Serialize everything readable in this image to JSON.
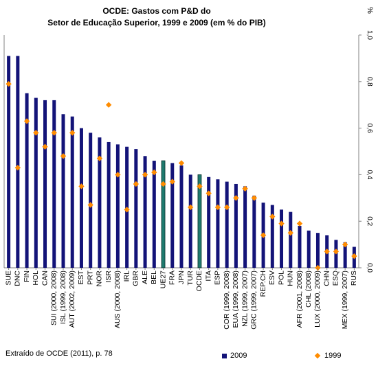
{
  "title_line1": "OCDE: Gastos com P&D do",
  "title_line2": "Setor de Educação Superior, 1999 e 2009 (em % do PIB)",
  "source": "Extraído de OCDE (2011), p. 78",
  "colors": {
    "bar_2009": "#131378",
    "bar_highlight": "#1f7a6e",
    "marker_1999": "#ff8c00",
    "axis": "#808080"
  },
  "chart_data": {
    "type": "bar",
    "title": "OCDE: Gastos com P&D do Setor de Educação Superior, 1999 e 2009 (em % do PIB)",
    "ylabel": "%",
    "ylim": [
      0,
      1.0
    ],
    "yticks": [
      "0,0",
      "0,2",
      "0,4",
      "0,6",
      "0,8",
      "1,0"
    ],
    "grid": false,
    "legend": "bottom-right",
    "highlight": [
      "UE27",
      "OCDE"
    ],
    "categories": [
      "SUE",
      "DNC",
      "FIN",
      "HOL",
      "CAN",
      "SUI (2000, 2008)",
      "ISL (1999, 2008)",
      "AUT (2002, 2009)",
      "EST",
      "PRT",
      "NOR",
      "ISR",
      "AUS (2000, 2008)",
      "IRL",
      "GBR",
      "ALE",
      "BEL",
      "UE27",
      "FRA",
      "JPN",
      "TUR",
      "OCDE",
      "ITA",
      "ESP",
      "COR (1999, 2008)",
      "EUA (1999, 2008)",
      "NZL (1999, 2007)",
      "GRC (1999, 2007)",
      "REP.CH",
      "ESV",
      "POL",
      "HUN",
      "AFR (2001, 2008)",
      "CHL (2008)",
      "LUX (2000, 2009)",
      "CHN",
      "ESQ",
      "MEX (1999, 2007)",
      "RUS"
    ],
    "series": [
      {
        "name": "2009",
        "type": "bar",
        "values": [
          0.91,
          0.91,
          0.75,
          0.73,
          0.72,
          0.72,
          0.66,
          0.65,
          0.6,
          0.58,
          0.56,
          0.54,
          0.53,
          0.52,
          0.51,
          0.48,
          0.46,
          0.46,
          0.45,
          0.44,
          0.4,
          0.4,
          0.39,
          0.38,
          0.37,
          0.36,
          0.35,
          0.31,
          0.28,
          0.27,
          0.25,
          0.24,
          0.18,
          0.16,
          0.15,
          0.14,
          0.12,
          0.11,
          0.09
        ]
      },
      {
        "name": "1999",
        "type": "marker",
        "values": [
          0.79,
          0.43,
          0.63,
          0.58,
          0.52,
          0.58,
          0.48,
          0.58,
          0.35,
          0.27,
          0.47,
          0.7,
          0.4,
          0.25,
          0.36,
          0.4,
          0.41,
          0.36,
          0.37,
          0.45,
          0.26,
          0.35,
          0.32,
          0.26,
          0.26,
          0.3,
          0.34,
          0.3,
          0.14,
          0.22,
          0.19,
          0.15,
          0.19,
          null,
          0.0,
          0.07,
          0.07,
          0.1,
          0.05
        ]
      }
    ]
  }
}
